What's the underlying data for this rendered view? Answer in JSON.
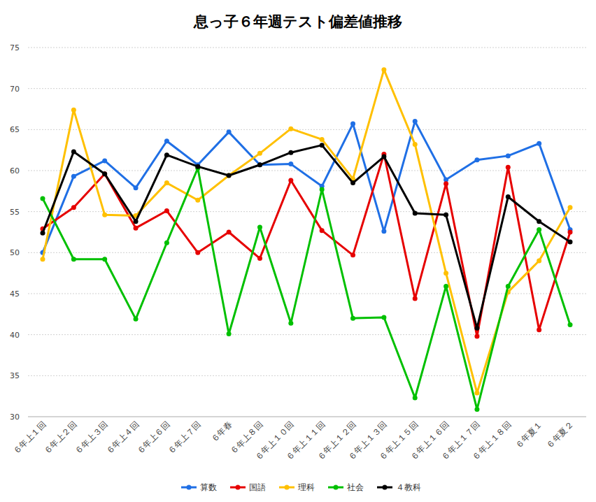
{
  "chart_data": {
    "type": "line",
    "title": "息っ子６年週テスト偏差値推移",
    "categories": [
      "６年上１回",
      "６年上２回",
      "６年上３回",
      "６年上４回",
      "６年上６回",
      "６年上７回",
      "６年春",
      "６年上８回",
      "６年上１０回",
      "６年上１１回",
      "６年上１２回",
      "６年上１３回",
      "６年上１５回",
      "６年上１６回",
      "６年上１７回",
      "６年上１８回",
      "６年夏１",
      "６年夏２"
    ],
    "series": [
      {
        "name": "算数",
        "color": "#1f6fe5",
        "values": [
          50.0,
          59.3,
          61.2,
          57.9,
          63.6,
          60.7,
          64.7,
          60.7,
          60.8,
          58.1,
          65.7,
          52.6,
          66.0,
          58.9,
          61.3,
          61.8,
          63.3,
          52.8
        ]
      },
      {
        "name": "国語",
        "color": "#e60000",
        "values": [
          52.9,
          55.5,
          59.6,
          53.0,
          55.1,
          50.0,
          52.5,
          49.3,
          58.8,
          52.7,
          49.7,
          62.0,
          44.4,
          58.4,
          39.8,
          60.4,
          40.6,
          52.5
        ]
      },
      {
        "name": "理科",
        "color": "#ffc000",
        "values": [
          49.2,
          67.4,
          54.6,
          54.5,
          58.5,
          56.4,
          59.4,
          62.1,
          65.1,
          63.8,
          59.0,
          72.3,
          63.2,
          47.5,
          32.9,
          45.2,
          49.0,
          55.5
        ]
      },
      {
        "name": "社会",
        "color": "#00c000",
        "values": [
          56.6,
          49.2,
          49.2,
          41.9,
          51.2,
          60.3,
          40.1,
          53.1,
          41.4,
          57.7,
          42.0,
          42.1,
          32.3,
          45.9,
          30.9,
          45.9,
          52.8,
          41.2
        ]
      },
      {
        "name": "４教科",
        "color": "#000000",
        "values": [
          52.4,
          62.3,
          59.6,
          53.8,
          61.9,
          60.5,
          59.4,
          60.7,
          62.2,
          63.1,
          58.5,
          61.7,
          54.8,
          54.6,
          40.8,
          56.8,
          53.8,
          51.3
        ]
      }
    ],
    "ylim": [
      30,
      75
    ],
    "yticks": [
      30,
      35,
      40,
      45,
      50,
      55,
      60,
      65,
      70,
      75
    ],
    "grid": true,
    "legend": "bottom",
    "marker": "circle"
  }
}
